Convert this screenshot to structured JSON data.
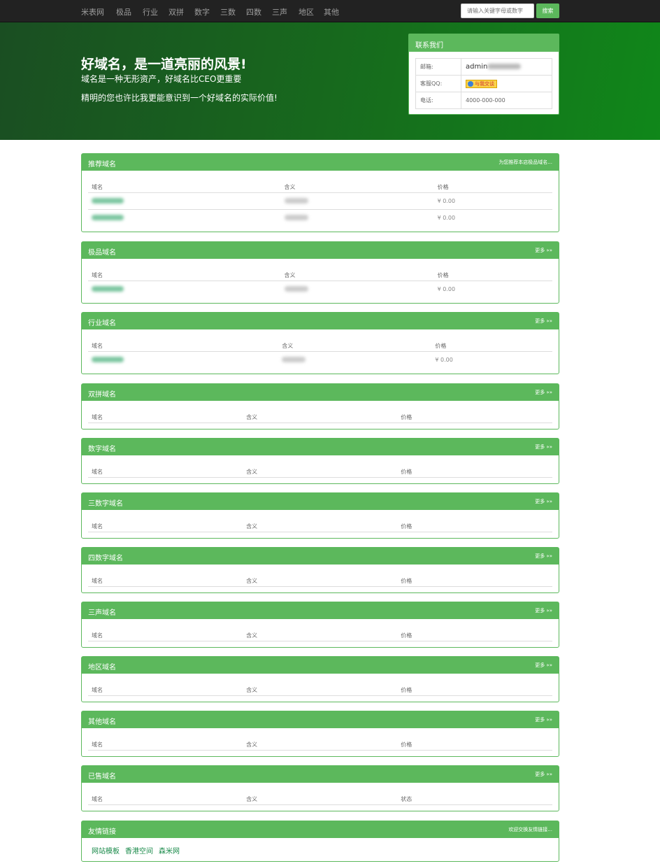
{
  "nav": {
    "items": [
      "米表网",
      "极品",
      "行业",
      "双拼",
      "数字",
      "三数",
      "四数",
      "三声",
      "地区",
      "其他"
    ],
    "search_placeholder": "请输入关键字母或数字",
    "search_button": "搜索"
  },
  "hero": {
    "title": "好域名，是一道亮丽的风景!",
    "subtitle": "域名是一种无形资产，好域名比CEO更重要",
    "tagline": "精明的您也许比我更能意识到一个好域名的实际价值!"
  },
  "contact": {
    "title": "联系我们",
    "email_label": "邮箱:",
    "email_value": "admin",
    "qq_label": "客服QQ:",
    "qq_button": "与我交谈",
    "phone_label": "电话:",
    "phone_value": "4000-000-000"
  },
  "colors": {
    "accent": "#5cb85c",
    "nav_bg": "#222222",
    "hero_dark": "#1a4e22",
    "hero_light": "#10871a"
  },
  "panels": [
    {
      "title": "推荐域名",
      "more": "为您推荐本店极品域名...",
      "cols": [
        "域名",
        "含义",
        "价格"
      ],
      "rows": [
        {
          "price": "¥ 0.00"
        },
        {
          "price": "¥ 0.00"
        }
      ]
    },
    {
      "title": "极品域名",
      "more": "更多 »»",
      "cols": [
        "域名",
        "含义",
        "价格"
      ],
      "rows": [
        {
          "price": "¥ 0.00"
        }
      ]
    },
    {
      "title": "行业域名",
      "more": "更多 »»",
      "cols": [
        "域名",
        "含义",
        "价格"
      ],
      "rows": [
        {
          "price": "¥ 0.00"
        }
      ]
    },
    {
      "title": "双拼域名",
      "more": "更多 »»",
      "cols": [
        "域名",
        "含义",
        "价格"
      ],
      "rows": []
    },
    {
      "title": "数字域名",
      "more": "更多 »»",
      "cols": [
        "域名",
        "含义",
        "价格"
      ],
      "rows": []
    },
    {
      "title": "三数字域名",
      "more": "更多 »»",
      "cols": [
        "域名",
        "含义",
        "价格"
      ],
      "rows": []
    },
    {
      "title": "四数字域名",
      "more": "更多 »»",
      "cols": [
        "域名",
        "含义",
        "价格"
      ],
      "rows": []
    },
    {
      "title": "三声域名",
      "more": "更多 »»",
      "cols": [
        "域名",
        "含义",
        "价格"
      ],
      "rows": []
    },
    {
      "title": "地区域名",
      "more": "更多 »»",
      "cols": [
        "域名",
        "含义",
        "价格"
      ],
      "rows": []
    },
    {
      "title": "其他域名",
      "more": "更多 »»",
      "cols": [
        "域名",
        "含义",
        "价格"
      ],
      "rows": []
    },
    {
      "title": "已售域名",
      "more": "更多 »»",
      "cols": [
        "域名",
        "含义",
        "状态"
      ],
      "rows": []
    }
  ],
  "friends": {
    "title": "友情链接",
    "more": "欢迎交换友情链接...",
    "links": [
      "网站模板",
      "香港空间",
      "森米网"
    ]
  }
}
